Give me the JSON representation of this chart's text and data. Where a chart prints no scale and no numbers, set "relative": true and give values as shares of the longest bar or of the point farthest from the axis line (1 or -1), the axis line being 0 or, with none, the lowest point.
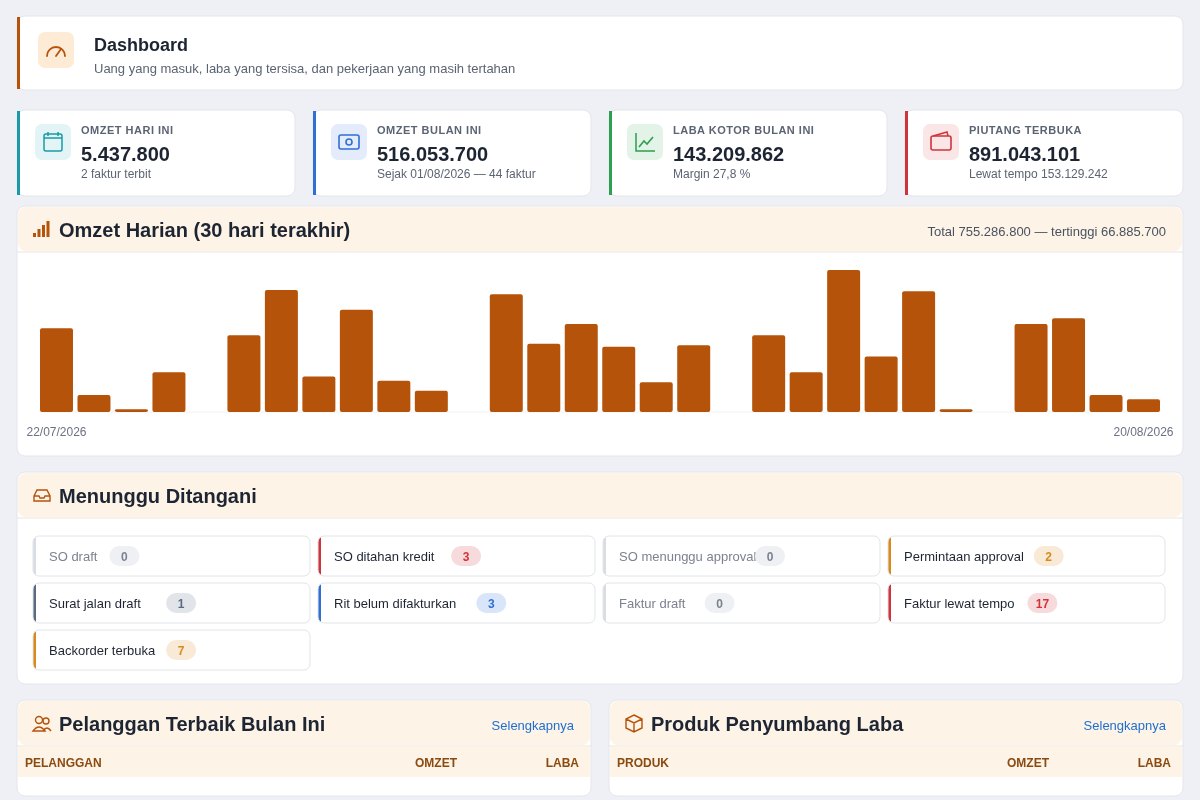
{
  "chart_data": [
    {
      "type": "other",
      "title": "Dashboard",
      "subtitle": "Uang yang masuk, laba yang tersisa, dan pekerjaan yang masih tertahan"
    },
    {
      "type": "other",
      "title": "OMZET HARI INI",
      "annotations": [
        "5.437.800",
        "2 faktur terbit"
      ]
    },
    {
      "type": "other",
      "title": "OMZET BULAN INI",
      "annotations": [
        "516.053.700",
        "Sejak 01/08/2026 — 44 faktur"
      ]
    },
    {
      "type": "other",
      "title": "LABA KOTOR BULAN INI",
      "annotations": [
        "143.209.862",
        "Margin 27,8 %"
      ]
    },
    {
      "type": "other",
      "title": "PIUTANG TERBUKA",
      "annotations": [
        "891.043.101",
        "Lewat tempo 153.129.242"
      ]
    },
    {
      "type": "bar",
      "title": "Omzet Harian (30 hari terakhir)",
      "annotations": [
        "Total 755.286.800 — tertinggi 66.885.700"
      ],
      "relative": true,
      "color": "#b5530b",
      "categories": [
        "22/07/2026",
        null,
        null,
        null,
        null,
        null,
        null,
        null,
        null,
        null,
        null,
        null,
        null,
        null,
        null,
        null,
        null,
        null,
        null,
        null,
        null,
        null,
        null,
        null,
        null,
        null,
        null,
        null,
        null,
        "20/08/2026"
      ],
      "values": [
        0.59,
        0.12,
        0.02,
        0.28,
        0,
        0.54,
        0.86,
        0.25,
        0.72,
        0.22,
        0.15,
        0,
        0.83,
        0.48,
        0.62,
        0.46,
        0.21,
        0.47,
        0,
        0.54,
        0.28,
        1,
        0.39,
        0.85,
        0.02,
        0,
        0.62,
        0.66,
        0.12,
        0.09
      ]
    },
    {
      "type": "other",
      "title": "Menunggu Ditangani",
      "categories": [
        "SO draft",
        "SO ditahan kredit",
        "SO menunggu approval",
        "Permintaan approval",
        "Surat jalan draft",
        "Rit belum difakturkan",
        "Faktur draft",
        "Faktur lewat tempo",
        "Backorder terbuka"
      ],
      "values": [
        0,
        3,
        0,
        2,
        1,
        3,
        0,
        17,
        7
      ],
      "data_labels": true
    },
    {
      "type": "other",
      "title": "Pelanggan Terbaik Bulan Ini",
      "annotations": [
        "Selengkapnya",
        "PELANGGAN",
        "OMZET",
        "LABA"
      ]
    },
    {
      "type": "other",
      "title": "Produk Penyumbang Laba",
      "annotations": [
        "Selengkapnya",
        "PRODUK",
        "OMZET",
        "LABA"
      ]
    }
  ]
}
